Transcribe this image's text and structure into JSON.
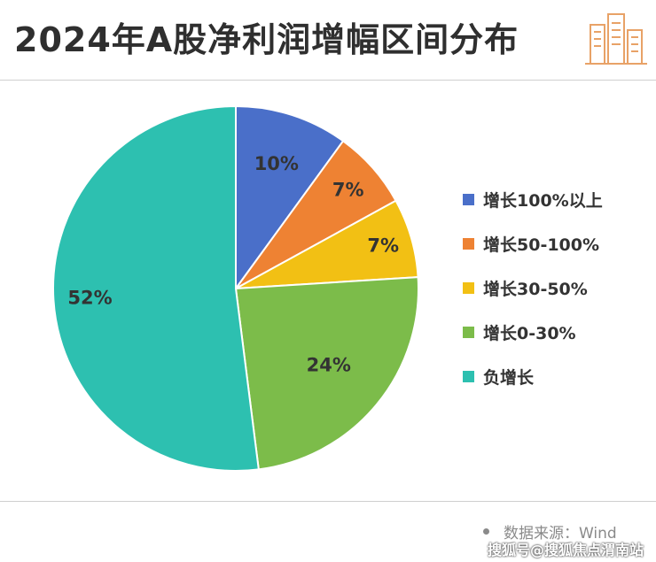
{
  "title": "2024年A股净利润增幅区间分布",
  "source": {
    "label": "数据来源：Wind"
  },
  "watermark": "搜狐号@搜狐焦点渭南站",
  "chart_data": {
    "type": "pie",
    "title": "2024年A股净利润增幅区间分布",
    "legend_position": "right",
    "slices": [
      {
        "name": "增长100%以上",
        "value": 10,
        "label": "10%",
        "color": "#4a6fc9"
      },
      {
        "name": "增长50-100%",
        "value": 7,
        "label": "7%",
        "color": "#ee8233"
      },
      {
        "name": "增长30-50%",
        "value": 7,
        "label": "7%",
        "color": "#f2c014"
      },
      {
        "name": "增长0-30%",
        "value": 24,
        "label": "24%",
        "color": "#7cbc4a"
      },
      {
        "name": "负增长",
        "value": 52,
        "label": "52%",
        "color": "#2dc0b0"
      }
    ]
  }
}
